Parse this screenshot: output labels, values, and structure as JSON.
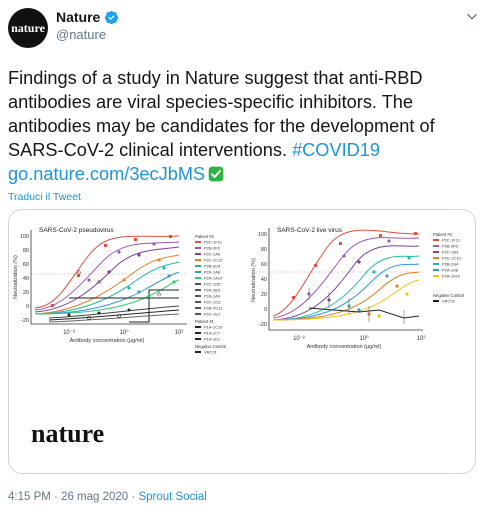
{
  "account": {
    "display_name": "Nature",
    "handle": "@nature",
    "avatar_text": "nature",
    "verified": true
  },
  "tweet": {
    "text_main": "Findings of a study in Nature suggest that anti-RBD antibodies are viral species-specific inhibitors. The antibodies may be candidates for the development of SARS-CoV-2 clinical interventions.",
    "hashtag": "#COVID19",
    "link": "go.nature.com/3ecJbMS",
    "translate_label": "Traduci il Tweet"
  },
  "media": {
    "brand": "nature",
    "panels": [
      {
        "title": "SARS-CoV-2 pseudovirus",
        "ylabel": "Neutralization (%)",
        "xlabel": "Antibody concentration (μg/ml)",
        "yticks": [
          "100",
          "80",
          "60",
          "40",
          "20",
          "0",
          "-20"
        ],
        "xticks": [
          "10⁻²",
          "10⁰",
          "10²"
        ],
        "legend_groups": [
          {
            "title": "Patient #2",
            "items": [
              "P2C-1F11",
              "P2B-2F6",
              "P2C-1A3",
              "P2C-1C10",
              "P2B-2G4",
              "P2A-1A8",
              "P2A-1A10",
              "P2C-1D5",
              "P2A-1B3",
              "P2A-1A9",
              "P2C-1C8",
              "P2B-2G11",
              "P2C-1E1"
            ]
          },
          {
            "title": "Patient #1",
            "items": [
              "P1A-1C10",
              "P1A-1C7",
              "P1A-1D1"
            ]
          },
          {
            "title": "Negative Control",
            "items": [
              "VRC01"
            ]
          }
        ]
      },
      {
        "title": "SARS-CoV-2 live virus",
        "ylabel": "Neutralization (%)",
        "xlabel": "Antibody concentration (μg/ml)",
        "yticks": [
          "100",
          "80",
          "60",
          "40",
          "20",
          "0",
          "-20"
        ],
        "xticks": [
          "10⁻²",
          "10⁰",
          "10²"
        ],
        "legend_groups": [
          {
            "title": "Patient #2",
            "items": [
              "P2C-1F11",
              "P2B-2F6",
              "P2C-1A3",
              "P2C-1C10",
              "P2B-2G4",
              "P2A-1A8",
              "P2A-1A10"
            ]
          },
          {
            "title": "Negative Control",
            "items": [
              "VRC01"
            ]
          }
        ]
      }
    ]
  },
  "footer": {
    "time": "4:15 PM",
    "separator": " · ",
    "date": "26 mag 2020",
    "source": "Sprout Social"
  },
  "colors": {
    "link": "#1b95e0",
    "verified": "#1da1f2",
    "text": "#14171a",
    "muted": "#657786",
    "check_emoji": "#2fb344"
  },
  "icons": {
    "verified": "verified-badge-icon",
    "chevron": "chevron-down-icon",
    "check": "check-mark-emoji-icon"
  }
}
